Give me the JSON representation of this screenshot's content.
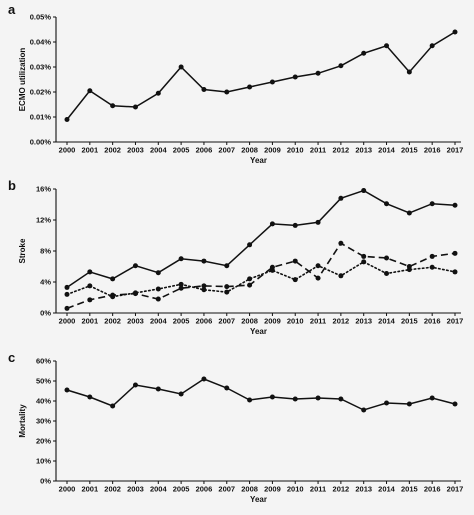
{
  "chart_data": [
    {
      "panel_label": "a",
      "type": "line",
      "xlabel": "Year",
      "ylabel": "ECMO utilization",
      "x": [
        "2000",
        "2001",
        "2002",
        "2003",
        "2004",
        "2005",
        "2006",
        "2007",
        "2008",
        "2009",
        "2010",
        "2011",
        "2012",
        "2013",
        "2014",
        "2015",
        "2016",
        "2017"
      ],
      "yticks": [
        "0.00%",
        "0.01%",
        "0.02%",
        "0.03%",
        "0.04%",
        "0.05%"
      ],
      "ylim": [
        0,
        0.05
      ],
      "series": [
        {
          "style": "solid",
          "values": [
            0.009,
            0.0205,
            0.0145,
            0.014,
            0.0195,
            0.03,
            0.021,
            0.02,
            0.022,
            0.024,
            0.026,
            0.0275,
            0.0305,
            0.0355,
            0.0385,
            0.028,
            0.0385,
            0.044
          ]
        }
      ]
    },
    {
      "panel_label": "b",
      "type": "line",
      "xlabel": "Year",
      "ylabel": "Stroke",
      "x": [
        "2000",
        "2001",
        "2002",
        "2003",
        "2004",
        "2005",
        "2006",
        "2007",
        "2008",
        "2009",
        "2010",
        "2011",
        "2012",
        "2013",
        "2014",
        "2015",
        "2016",
        "2017"
      ],
      "yticks": [
        "0%",
        "4%",
        "8%",
        "12%",
        "16%"
      ],
      "ylim": [
        0,
        16
      ],
      "series": [
        {
          "style": "solid",
          "values": [
            3.3,
            5.3,
            4.4,
            6.1,
            5.2,
            7.0,
            6.7,
            6.1,
            8.8,
            11.5,
            11.3,
            11.7,
            14.8,
            15.8,
            14.1,
            12.9,
            14.1,
            13.9
          ]
        },
        {
          "style": "dashed",
          "values": [
            0.6,
            1.7,
            2.3,
            2.5,
            1.8,
            3.2,
            3.5,
            3.4,
            3.6,
            5.9,
            6.7,
            4.5,
            9.0,
            7.3,
            7.1,
            6.0,
            7.3,
            7.7
          ]
        },
        {
          "style": "dotted",
          "values": [
            2.4,
            3.5,
            2.1,
            2.6,
            3.1,
            3.7,
            3.0,
            2.7,
            4.4,
            5.5,
            4.3,
            6.1,
            4.8,
            6.6,
            5.1,
            5.6,
            5.9,
            5.3
          ]
        }
      ]
    },
    {
      "panel_label": "c",
      "type": "line",
      "xlabel": "Year",
      "ylabel": "Mortality",
      "x": [
        "2000",
        "2001",
        "2002",
        "2003",
        "2004",
        "2005",
        "2006",
        "2007",
        "2008",
        "2009",
        "2010",
        "2011",
        "2012",
        "2013",
        "2014",
        "2015",
        "2016",
        "2017"
      ],
      "yticks": [
        "0%",
        "10%",
        "20%",
        "30%",
        "40%",
        "50%",
        "60%"
      ],
      "ylim": [
        0,
        60
      ],
      "series": [
        {
          "style": "solid",
          "values": [
            45.5,
            42.0,
            37.5,
            48.0,
            46.0,
            43.5,
            51.0,
            46.5,
            40.5,
            42.0,
            41.0,
            41.5,
            41.0,
            35.5,
            39.0,
            38.5,
            41.5,
            38.5
          ]
        }
      ]
    }
  ]
}
